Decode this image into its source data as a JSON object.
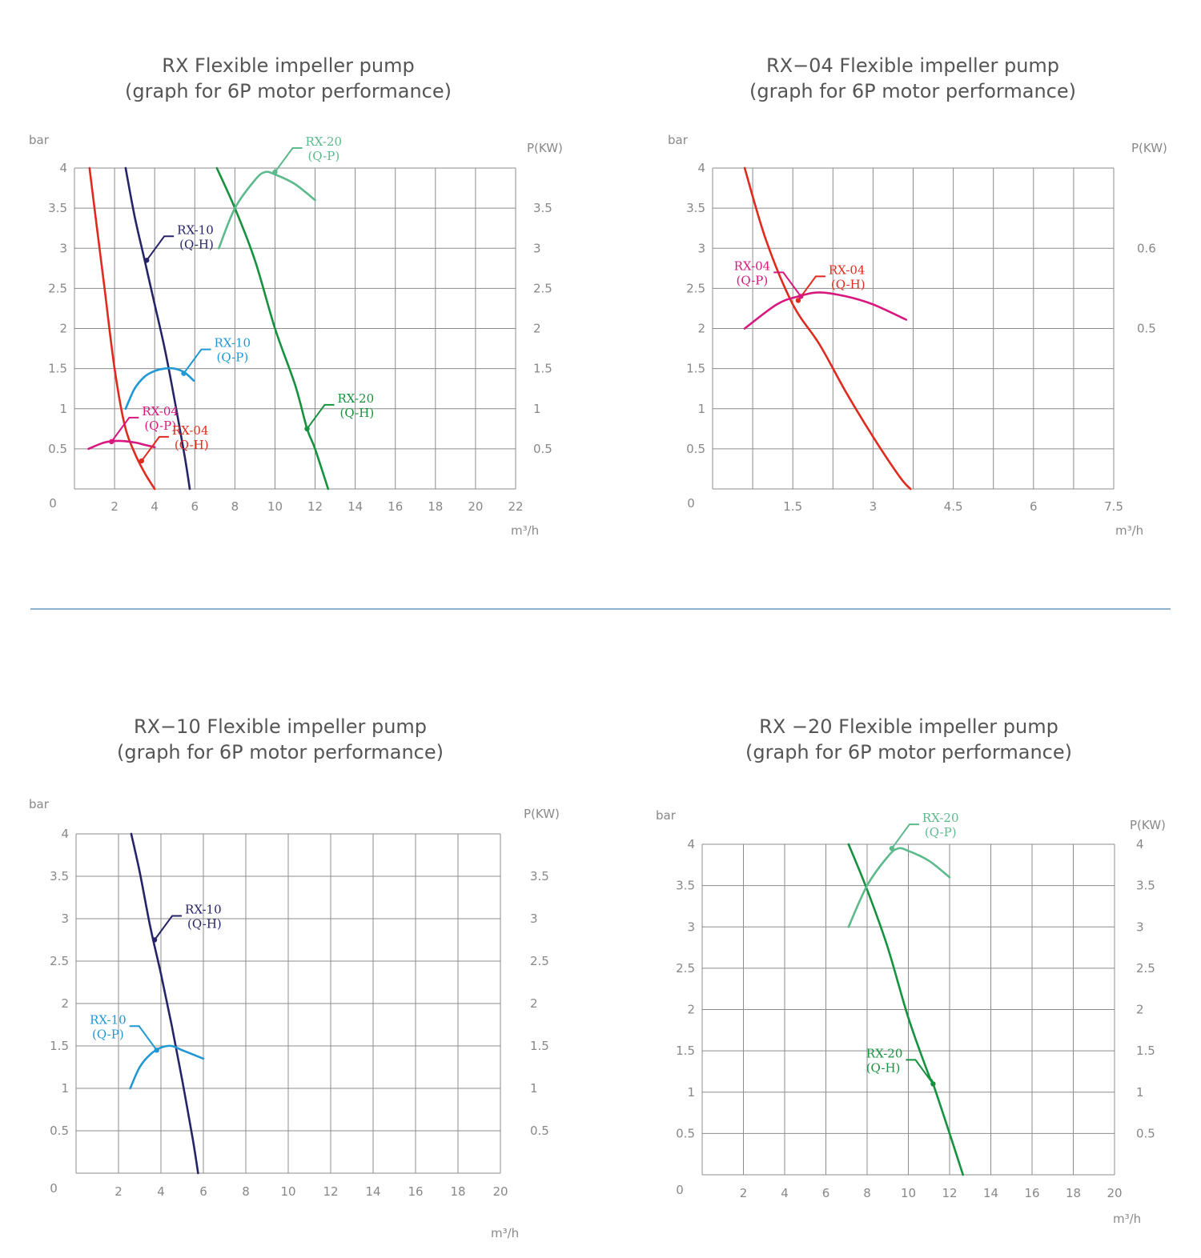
{
  "divider_color": "#8fb3cf",
  "colors": {
    "red": "#e02a1e",
    "navy": "#252469",
    "blue": "#1f98d5",
    "magenta": "#d8177f",
    "green_dark": "#16923e",
    "green_light": "#5cba8c"
  },
  "chart_data": [
    {
      "type": "line",
      "title": "RX Flexible impeller pump",
      "subtitle": "(graph for 6P motor performance)",
      "ylabel": "bar",
      "y2label": "P(KW)",
      "xlabel": "m³/h",
      "xlim": [
        0,
        22
      ],
      "ylim": [
        0,
        4
      ],
      "y2lim": [
        0,
        4
      ],
      "grid": true,
      "x_ticks": [
        "2",
        "4",
        "6",
        "8",
        "10",
        "12",
        "14",
        "16",
        "18",
        "20",
        "22"
      ],
      "y_ticks": [
        "0",
        "0.5",
        "1",
        "1.5",
        "2",
        "2.5",
        "3",
        "3.5",
        "4"
      ],
      "y2_ticks": [
        "0.5",
        "1",
        "1.5",
        "2",
        "2.5",
        "3",
        "3.5"
      ],
      "series": [
        {
          "name": "RX-04 (Q-H)",
          "color": "#e02a1e",
          "axis": "left",
          "x": [
            0.75,
            1.1,
            1.5,
            2.0,
            2.5,
            3.0,
            3.5,
            4.0
          ],
          "y": [
            4.0,
            3.3,
            2.5,
            1.5,
            0.8,
            0.45,
            0.2,
            0.0
          ]
        },
        {
          "name": "RX-10 (Q-H)",
          "color": "#252469",
          "axis": "left",
          "x": [
            2.55,
            3.0,
            3.5,
            4.0,
            4.5,
            5.0,
            5.5,
            5.75
          ],
          "y": [
            4.0,
            3.4,
            2.85,
            2.3,
            1.75,
            1.1,
            0.4,
            0.0
          ]
        },
        {
          "name": "RX-20 (Q-H)",
          "color": "#16923e",
          "axis": "left",
          "x": [
            7.1,
            8.0,
            9.0,
            10.0,
            11.0,
            11.6,
            12.0,
            12.65
          ],
          "y": [
            4.0,
            3.5,
            2.85,
            2.0,
            1.3,
            0.75,
            0.5,
            0.0
          ]
        },
        {
          "name": "RX-04 (Q-P)",
          "color": "#d8177f",
          "axis": "right",
          "x": [
            0.7,
            1.5,
            2.2,
            3.0,
            3.5,
            4.0
          ],
          "y": [
            0.5,
            0.58,
            0.6,
            0.58,
            0.55,
            0.52
          ]
        },
        {
          "name": "RX-10 (Q-P)",
          "color": "#1f98d5",
          "axis": "right",
          "x": [
            2.55,
            3.0,
            3.5,
            4.0,
            4.5,
            5.0,
            5.5,
            5.95
          ],
          "y": [
            1.0,
            1.25,
            1.4,
            1.47,
            1.5,
            1.5,
            1.45,
            1.35
          ]
        },
        {
          "name": "RX-20 (Q-P)",
          "color": "#5cba8c",
          "axis": "right",
          "x": [
            7.2,
            8.0,
            9.0,
            9.5,
            10.0,
            11.0,
            12.0
          ],
          "y": [
            3.0,
            3.5,
            3.85,
            3.95,
            3.92,
            3.8,
            3.6
          ]
        }
      ],
      "annotations": [
        {
          "series": "RX-10 (Q-H)",
          "line1": "RX-10",
          "line2": "(Q-H)",
          "x": 3.6,
          "y": 2.85,
          "dir": "right"
        },
        {
          "series": "RX-20 (Q-P)",
          "line1": "RX-20",
          "line2": "(Q-P)",
          "x": 10.0,
          "y": 3.95,
          "dir": "right"
        },
        {
          "series": "RX-10 (Q-P)",
          "line1": "RX-10",
          "line2": "(Q-P)",
          "x": 5.45,
          "y": 1.44,
          "dir": "right"
        },
        {
          "series": "RX-04 (Q-P)",
          "line1": "RX-04",
          "line2": "(Q-P)",
          "x": 1.85,
          "y": 0.59,
          "dir": "right"
        },
        {
          "series": "RX-04 (Q-H)",
          "line1": "RX-04",
          "line2": "(Q-H)",
          "x": 3.35,
          "y": 0.35,
          "dir": "right"
        },
        {
          "series": "RX-20 (Q-H)",
          "line1": "RX-20",
          "line2": "(Q-H)",
          "x": 11.6,
          "y": 0.75,
          "dir": "right"
        }
      ]
    },
    {
      "type": "line",
      "title": "RX−04 Flexible impeller pump",
      "subtitle": "(graph for 6P motor performance)",
      "ylabel": "bar",
      "y2label": "P(KW)",
      "xlabel": "m³/h",
      "xlim": [
        0,
        7.5
      ],
      "ylim": [
        0,
        4
      ],
      "y2lim": [
        0.3,
        0.7
      ],
      "grid": true,
      "x_ticks": [
        "1.5",
        "3",
        "4.5",
        "6",
        "7.5"
      ],
      "y_ticks": [
        "0",
        "0.5",
        "1",
        "1.5",
        "2",
        "2.5",
        "3",
        "3.5",
        "4"
      ],
      "y2_ticks": [
        "0.5",
        "0.6"
      ],
      "series": [
        {
          "name": "RX-04 (Q-H)",
          "color": "#e02a1e",
          "axis": "left",
          "x": [
            0.6,
            1.0,
            1.5,
            2.0,
            2.5,
            3.0,
            3.5,
            3.7
          ],
          "y": [
            4.0,
            3.1,
            2.3,
            1.8,
            1.2,
            0.65,
            0.15,
            0.0
          ]
        },
        {
          "name": "RX-04 (Q-P)",
          "color": "#d8177f",
          "axis": "right",
          "x": [
            0.6,
            1.2,
            1.6,
            2.0,
            2.5,
            3.0,
            3.62
          ],
          "y": [
            0.5,
            0.53,
            0.54,
            0.545,
            0.54,
            0.53,
            0.511
          ]
        }
      ],
      "annotations": [
        {
          "series": "RX-04 (Q-H)",
          "line1": "RX-04",
          "line2": "(Q-H)",
          "x": 1.6,
          "y": 2.35,
          "dir": "right"
        },
        {
          "series": "RX-04 (Q-P)",
          "line1": "RX-04",
          "line2": "(Q-P)",
          "x": 1.65,
          "y": 0.54,
          "dir": "left"
        }
      ]
    },
    {
      "type": "line",
      "title": "RX−10 Flexible impeller pump",
      "subtitle": "(graph for 6P motor performance)",
      "ylabel": "bar",
      "y2label": "P(KW)",
      "xlabel": "m³/h",
      "xlim": [
        0,
        20
      ],
      "ylim": [
        0,
        4
      ],
      "y2lim": [
        0,
        4
      ],
      "grid": true,
      "x_ticks": [
        "2",
        "4",
        "6",
        "8",
        "10",
        "12",
        "14",
        "16",
        "18",
        "20"
      ],
      "y_ticks": [
        "0",
        "0.5",
        "1",
        "1.5",
        "2",
        "2.5",
        "3",
        "3.5",
        "4"
      ],
      "y2_ticks": [
        "0.5",
        "1",
        "1.5",
        "2",
        "2.5",
        "3",
        "3.5"
      ],
      "series": [
        {
          "name": "RX-10 (Q-H)",
          "color": "#252469",
          "axis": "left",
          "x": [
            2.6,
            3.0,
            3.5,
            4.0,
            4.5,
            5.0,
            5.5,
            5.75
          ],
          "y": [
            4.0,
            3.55,
            2.9,
            2.35,
            1.75,
            1.1,
            0.4,
            0.0
          ]
        },
        {
          "name": "RX-10 (Q-P)",
          "color": "#1f98d5",
          "axis": "right",
          "x": [
            2.55,
            3.0,
            3.5,
            4.0,
            4.5,
            5.0,
            5.5,
            6.0
          ],
          "y": [
            1.0,
            1.25,
            1.4,
            1.48,
            1.5,
            1.45,
            1.4,
            1.35
          ]
        }
      ],
      "annotations": [
        {
          "series": "RX-10 (Q-H)",
          "line1": "RX-10",
          "line2": "(Q-H)",
          "x": 3.7,
          "y": 2.75,
          "dir": "right"
        },
        {
          "series": "RX-10 (Q-P)",
          "line1": "RX-10",
          "line2": "(Q-P)",
          "x": 3.8,
          "y": 1.45,
          "dir": "left"
        }
      ]
    },
    {
      "type": "line",
      "title": "RX −20 Flexible impeller pump",
      "subtitle": "(graph for 6P motor performance)",
      "ylabel": "bar",
      "y2label": "P(KW)",
      "xlabel": "m³/h",
      "xlim": [
        0,
        20
      ],
      "ylim": [
        0,
        4
      ],
      "y2lim": [
        0,
        4
      ],
      "grid": true,
      "x_ticks": [
        "2",
        "4",
        "6",
        "8",
        "10",
        "12",
        "14",
        "16",
        "18",
        "20"
      ],
      "y_ticks": [
        "0",
        "0.5",
        "1",
        "1.5",
        "2",
        "2.5",
        "3",
        "3.5",
        "4"
      ],
      "y2_ticks": [
        "0.5",
        "1",
        "1.5",
        "2",
        "2.5",
        "3",
        "3.5",
        "4"
      ],
      "series": [
        {
          "name": "RX-20 (Q-H)",
          "color": "#16923e",
          "axis": "left",
          "x": [
            7.1,
            8.0,
            9.0,
            10.0,
            11.0,
            11.2,
            12.0,
            12.65
          ],
          "y": [
            4.0,
            3.45,
            2.75,
            1.9,
            1.2,
            1.1,
            0.5,
            0.0
          ]
        },
        {
          "name": "RX-20 (Q-P)",
          "color": "#5cba8c",
          "axis": "right",
          "x": [
            7.1,
            8.0,
            9.0,
            9.5,
            10.0,
            11.0,
            12.0
          ],
          "y": [
            3.0,
            3.5,
            3.85,
            3.95,
            3.92,
            3.8,
            3.6
          ]
        }
      ],
      "annotations": [
        {
          "series": "RX-20 (Q-P)",
          "line1": "RX-20",
          "line2": "(Q-P)",
          "x": 9.2,
          "y": 3.95,
          "dir": "right"
        },
        {
          "series": "RX-20 (Q-H)",
          "line1": "RX-20",
          "line2": "(Q-H)",
          "x": 11.2,
          "y": 1.1,
          "dir": "left"
        }
      ]
    }
  ]
}
